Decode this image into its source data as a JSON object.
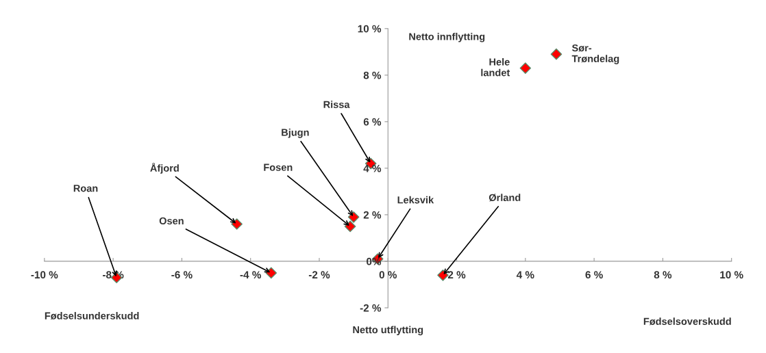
{
  "chart_data": {
    "type": "scatter",
    "x": [
      4.9,
      4.0,
      -0.5,
      -1.0,
      -1.1,
      -0.3,
      1.6,
      -7.9,
      -4.4,
      -3.4
    ],
    "values": [
      8.9,
      8.3,
      4.2,
      1.9,
      1.5,
      0.1,
      -0.6,
      -0.7,
      1.6,
      -0.5
    ],
    "color": "#ff0000",
    "marker": "diamond",
    "legend": false,
    "grid": false,
    "xlim": [
      -10,
      10
    ],
    "ylim": [
      -2,
      10
    ],
    "xticks": [
      {
        "value": -10,
        "label": "-10 %"
      },
      {
        "value": -8,
        "label": "-8 %"
      },
      {
        "value": -6,
        "label": "-6 %"
      },
      {
        "value": -4,
        "label": "-4 %"
      },
      {
        "value": -2,
        "label": "-2 %"
      },
      {
        "value": 0,
        "label": "0 %"
      },
      {
        "value": 2,
        "label": "2 %"
      },
      {
        "value": 4,
        "label": "4 %"
      },
      {
        "value": 6,
        "label": "6 %"
      },
      {
        "value": 8,
        "label": "8 %"
      },
      {
        "value": 10,
        "label": "10 %"
      }
    ],
    "yticks": [
      {
        "value": -2,
        "label": "-2 %"
      },
      {
        "value": 0,
        "label": "0%"
      },
      {
        "value": 2,
        "label": "2 %"
      },
      {
        "value": 4,
        "label": "4 %"
      },
      {
        "value": 6,
        "label": "6 %"
      },
      {
        "value": 8,
        "label": "8 %"
      },
      {
        "value": 10,
        "label": "10 %"
      }
    ],
    "annotations": [
      {
        "text": "Sør-\nTrøndelag",
        "x": 4.9,
        "y": 8.9
      },
      {
        "text": "Hele\nlandet",
        "x": 4.0,
        "y": 8.3
      },
      {
        "text": "Rissa",
        "x": -0.5,
        "y": 4.2
      },
      {
        "text": "Bjugn",
        "x": -1.0,
        "y": 1.9
      },
      {
        "text": "Fosen",
        "x": -1.1,
        "y": 1.5
      },
      {
        "text": "Leksvik",
        "x": -0.3,
        "y": 0.1
      },
      {
        "text": "Ørland",
        "x": 1.6,
        "y": -0.6
      },
      {
        "text": "Roan",
        "x": -7.9,
        "y": -0.7
      },
      {
        "text": "Åfjord",
        "x": -4.4,
        "y": 1.6
      },
      {
        "text": "Osen",
        "x": -3.4,
        "y": -0.5
      },
      "Netto innflytting",
      "Netto utflytting",
      "Fødselsunderskudd",
      "Fødselsoverskudd"
    ]
  }
}
